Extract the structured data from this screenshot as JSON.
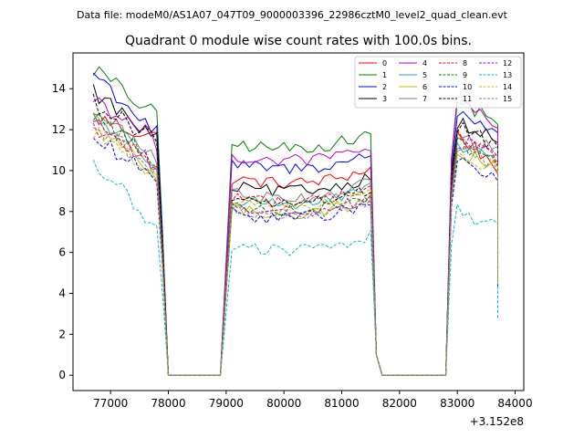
{
  "chart_data": {
    "type": "line",
    "suptitle": "Data file: modeM0/AS1A07_047T09_9000003396_22986cztM0_level2_quad_clean.evt",
    "title": "Quadrant 0 module wise count rates with 100.0s bins.",
    "xlabel": "",
    "ylabel": "",
    "x_offset_label": "+3.152e8",
    "xlim": [
      76350,
      84150
    ],
    "ylim": [
      -0.75,
      15.75
    ],
    "x_ticks": [
      77000,
      78000,
      79000,
      80000,
      81000,
      82000,
      83000,
      84000
    ],
    "x_tick_labels": [
      "77000",
      "78000",
      "79000",
      "80000",
      "81000",
      "82000",
      "83000",
      "84000"
    ],
    "y_ticks": [
      0,
      2,
      4,
      6,
      8,
      10,
      12,
      14
    ],
    "y_tick_labels": [
      "0",
      "2",
      "4",
      "6",
      "8",
      "10",
      "12",
      "14"
    ],
    "segments": [
      {
        "start": 76700,
        "step": 100,
        "n": 12
      },
      {
        "start": 79100,
        "step": 100,
        "n": 25
      },
      {
        "start": 82900,
        "step": 100,
        "n": 9
      }
    ],
    "gaps": [
      {
        "from_x": 77800,
        "drop_x": 77900,
        "zero_from": 78000,
        "zero_to": 78900
      },
      {
        "from_x": 81500,
        "drop_x": 81600,
        "zero_from": 81700,
        "zero_to": 82800
      }
    ],
    "end_x": 83700,
    "legend": {
      "location": "upper right",
      "columns": 4
    },
    "series": [
      {
        "name": "0",
        "color": "#ff0000",
        "dash": "solid",
        "level1": [
          12.6,
          11.6
        ],
        "level2": 9.6,
        "level3": [
          12.0,
          10.2
        ],
        "end": 5.2
      },
      {
        "name": "1",
        "color": "#008000",
        "dash": "solid",
        "level1": [
          15.0,
          12.6
        ],
        "level2": 11.3,
        "level3": [
          13.5,
          12.5
        ],
        "end": 6.1
      },
      {
        "name": "2",
        "color": "#0000ff",
        "dash": "solid",
        "level1": [
          14.8,
          11.8
        ],
        "level2": 10.3,
        "level3": [
          13.0,
          12.0
        ],
        "end": 5.6
      },
      {
        "name": "3",
        "color": "#000000",
        "dash": "solid",
        "level1": [
          13.9,
          11.4
        ],
        "level2": 9.2,
        "level3": [
          12.6,
          11.4
        ],
        "end": 5.0
      },
      {
        "name": "4",
        "color": "#bf00bf",
        "dash": "solid",
        "level1": [
          13.6,
          11.4
        ],
        "level2": 10.7,
        "level3": [
          13.6,
          12.0
        ],
        "end": 5.4
      },
      {
        "name": "5",
        "color": "#20b2aa",
        "dash": "solid",
        "level1": [
          12.7,
          10.4
        ],
        "level2": 8.6,
        "level3": [
          11.4,
          10.6
        ],
        "end": 4.6
      },
      {
        "name": "6",
        "color": "#bfbf00",
        "dash": "solid",
        "level1": [
          12.4,
          9.8
        ],
        "level2": 8.1,
        "level3": [
          11.0,
          10.2
        ],
        "end": 4.4
      },
      {
        "name": "7",
        "color": "#808080",
        "dash": "solid",
        "level1": [
          12.9,
          10.6
        ],
        "level2": 8.9,
        "level3": [
          12.0,
          10.8
        ],
        "end": 4.8
      },
      {
        "name": "8",
        "color": "#ff0000",
        "dash": "dashed",
        "level1": [
          12.1,
          10.4
        ],
        "level2": 8.7,
        "level3": [
          11.8,
          10.6
        ],
        "end": 4.8
      },
      {
        "name": "9",
        "color": "#008000",
        "dash": "dashed",
        "level1": [
          12.8,
          10.3
        ],
        "level2": 8.3,
        "level3": [
          11.6,
          10.4
        ],
        "end": 4.6
      },
      {
        "name": "10",
        "color": "#0000ff",
        "dash": "dashed",
        "level1": [
          11.6,
          9.5
        ],
        "level2": 7.9,
        "level3": [
          10.6,
          9.6
        ],
        "end": 4.3
      },
      {
        "name": "11",
        "color": "#000000",
        "dash": "dashed",
        "level1": [
          13.4,
          11.4
        ],
        "level2": 8.6,
        "level3": [
          12.2,
          11.2
        ],
        "end": 5.0
      },
      {
        "name": "12",
        "color": "#bf00bf",
        "dash": "dashed",
        "level1": [
          12.6,
          10.1
        ],
        "level2": 8.2,
        "level3": [
          11.6,
          10.6
        ],
        "end": 4.6
      },
      {
        "name": "13",
        "color": "#00bfbf",
        "dash": "dashed",
        "level1": [
          10.4,
          7.2
        ],
        "level2": 6.3,
        "level3": [
          8.2,
          7.2
        ],
        "end": 2.8
      },
      {
        "name": "14",
        "color": "#bfbf00",
        "dash": "dashed",
        "level1": [
          12.0,
          9.6
        ],
        "level2": 8.4,
        "level3": [
          11.0,
          10.0
        ],
        "end": 4.5
      },
      {
        "name": "15",
        "color": "#808080",
        "dash": "dashed",
        "level1": [
          12.2,
          10.0
        ],
        "level2": 8.0,
        "level3": [
          11.2,
          10.2
        ],
        "end": 4.6
      }
    ]
  }
}
